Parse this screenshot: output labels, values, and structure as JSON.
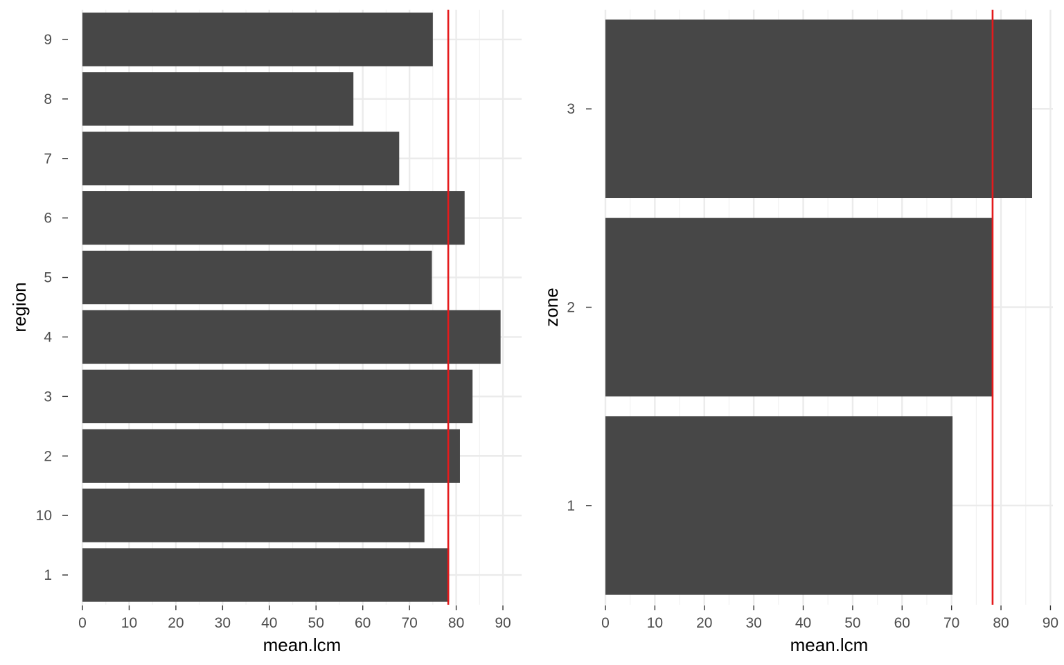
{
  "chart_data": [
    {
      "type": "bar",
      "orientation": "horizontal",
      "title": "",
      "xlabel": "mean.lcm",
      "ylabel": "region",
      "categories": [
        "1",
        "10",
        "2",
        "3",
        "4",
        "5",
        "6",
        "7",
        "8",
        "9"
      ],
      "values": [
        78.5,
        73.2,
        80.8,
        83.5,
        89.5,
        74.8,
        81.8,
        67.8,
        58.0,
        75.0
      ],
      "xlim": [
        0,
        94
      ],
      "xticks": [
        "0",
        "10",
        "20",
        "30",
        "40",
        "50",
        "60",
        "70",
        "80",
        "90"
      ],
      "reference_line": 78.3,
      "grid": true,
      "colors": {
        "bar": "#474747",
        "reference_line": "#e41a1c",
        "grid": "#ebebeb"
      }
    },
    {
      "type": "bar",
      "orientation": "horizontal",
      "title": "",
      "xlabel": "mean.lcm",
      "ylabel": "zone",
      "categories": [
        "1",
        "2",
        "3"
      ],
      "values": [
        70.2,
        78.3,
        86.3
      ],
      "xlim": [
        0,
        90.5
      ],
      "xticks": [
        "0",
        "10",
        "20",
        "30",
        "40",
        "50",
        "60",
        "70",
        "80",
        "90"
      ],
      "reference_line": 78.3,
      "grid": true,
      "colors": {
        "bar": "#474747",
        "reference_line": "#e41a1c",
        "grid": "#ebebeb"
      }
    }
  ]
}
